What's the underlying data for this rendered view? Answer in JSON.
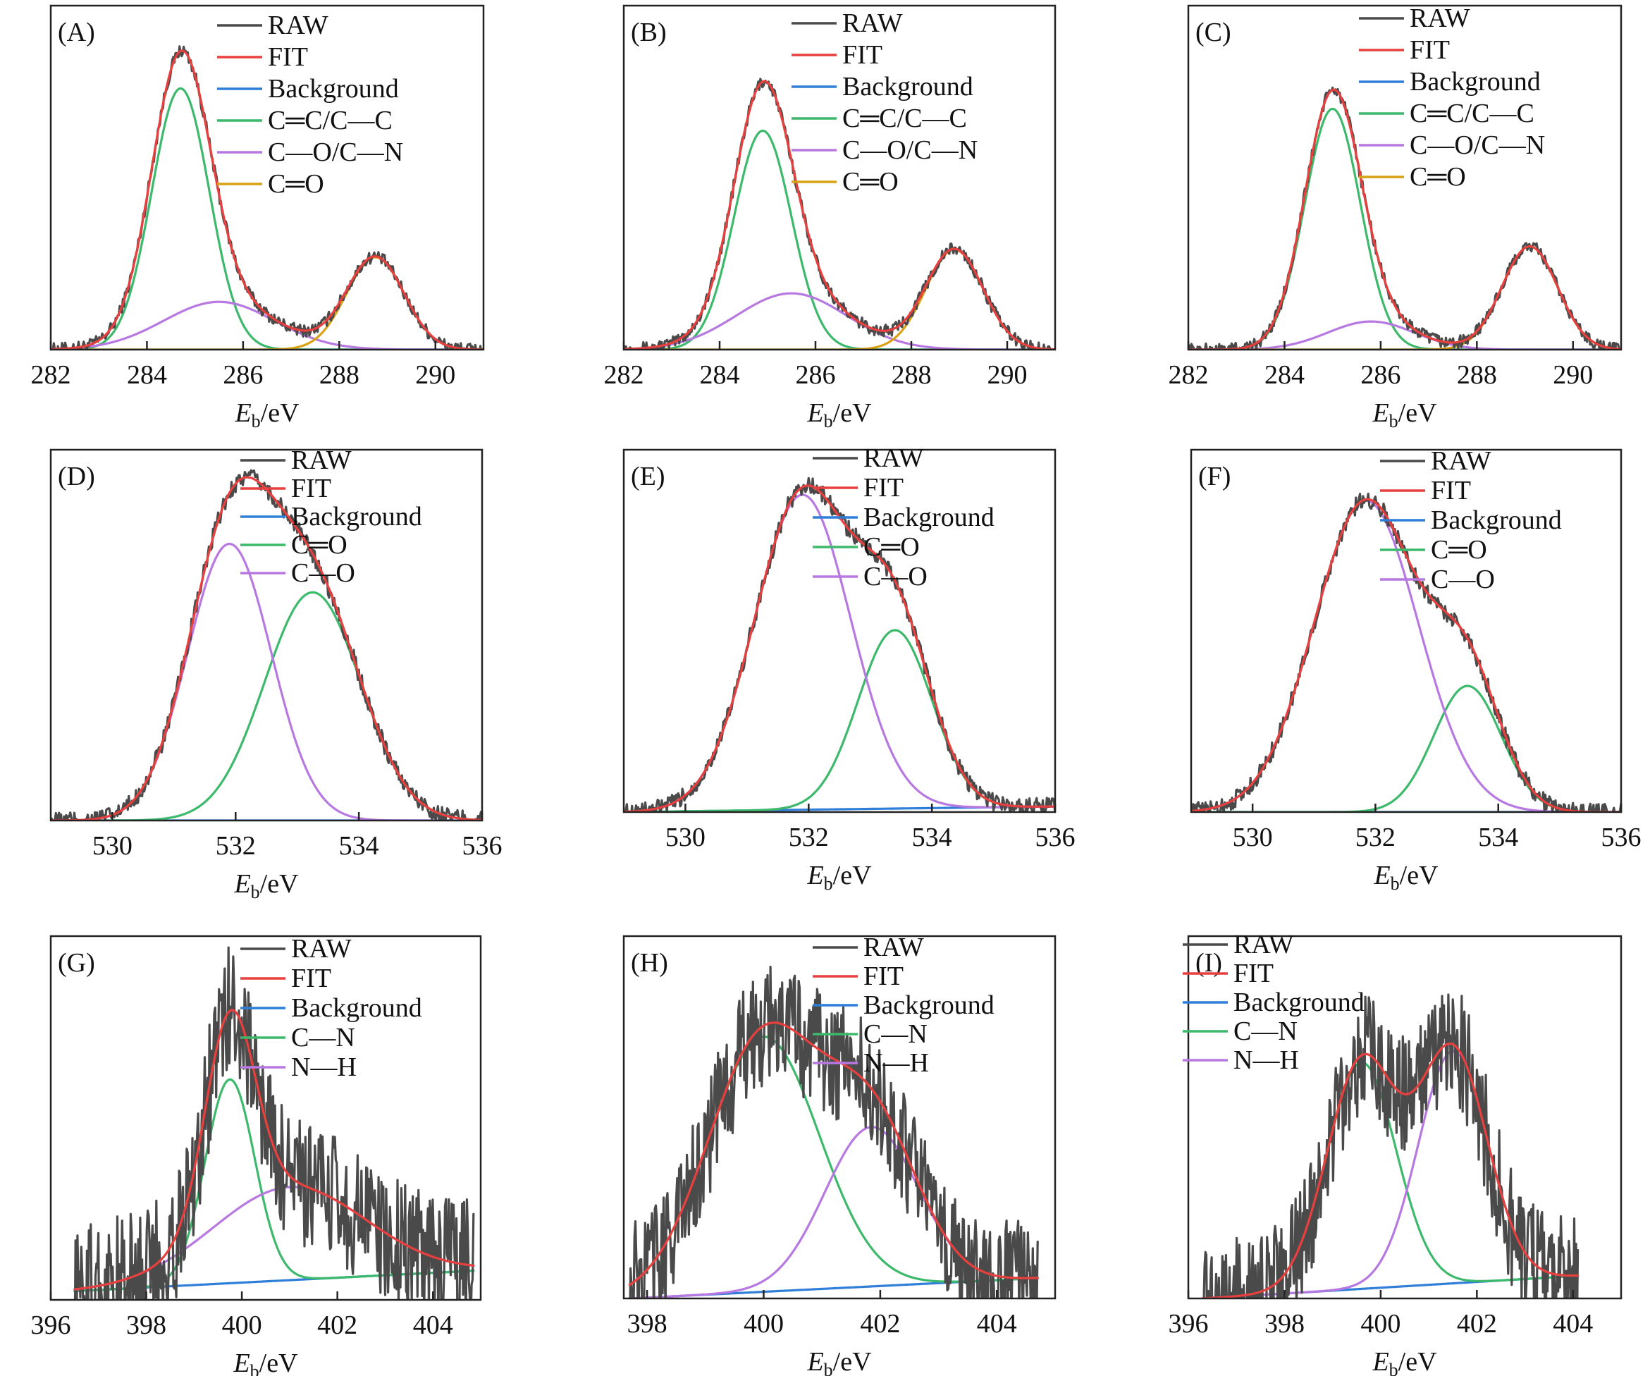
{
  "figure": {
    "title": ""
  },
  "chart_data": [
    {
      "panel": "(A)",
      "type": "line",
      "xlabel_main": "E",
      "xlabel_sub": "b",
      "xlabel_tail": "/eV",
      "xlim": [
        282,
        291
      ],
      "ylim": [
        0,
        1.08
      ],
      "xticks": [
        282,
        284,
        286,
        288,
        290
      ],
      "xtick_labels": [
        "282",
        "284",
        "286",
        "288",
        "290"
      ],
      "raw_noise": 0.006,
      "background": [
        0.0,
        0.0
      ],
      "components": [
        {
          "name": "C═C/C—C",
          "center": 284.7,
          "height": 0.82,
          "sigma": 0.6
        },
        {
          "name": "C—O/C—N",
          "center": 285.5,
          "height": 0.15,
          "sigma": 1.15
        },
        {
          "name": "C═O",
          "center": 288.75,
          "height": 0.29,
          "sigma": 0.6
        }
      ],
      "series": [
        {
          "name": "RAW",
          "color": "#4a4a4a"
        },
        {
          "name": "FIT",
          "color": "#e8403e"
        },
        {
          "name": "Background",
          "color": "#2f7ed8"
        },
        {
          "name": "C═C/C—C",
          "color": "#3cb96b"
        },
        {
          "name": "C—O/C—N",
          "color": "#b878e2"
        },
        {
          "name": "C═O",
          "color": "#d9a214"
        }
      ]
    },
    {
      "panel": "(B)",
      "type": "line",
      "xlabel_main": "E",
      "xlabel_sub": "b",
      "xlabel_tail": "/eV",
      "xlim": [
        282,
        291
      ],
      "ylim": [
        0,
        1.1
      ],
      "xticks": [
        282,
        284,
        286,
        288,
        290
      ],
      "xtick_labels": [
        "282",
        "284",
        "286",
        "288",
        "290"
      ],
      "raw_noise": 0.006,
      "background": [
        0.0,
        0.0
      ],
      "components": [
        {
          "name": "C═C/C—C",
          "center": 284.9,
          "height": 0.7,
          "sigma": 0.6
        },
        {
          "name": "C—O/C—N",
          "center": 285.5,
          "height": 0.18,
          "sigma": 1.15
        },
        {
          "name": "C═O",
          "center": 288.9,
          "height": 0.32,
          "sigma": 0.6
        }
      ],
      "series": [
        {
          "name": "RAW",
          "color": "#4a4a4a"
        },
        {
          "name": "FIT",
          "color": "#e8403e"
        },
        {
          "name": "Background",
          "color": "#2f7ed8"
        },
        {
          "name": "C═C/C—C",
          "color": "#3cb96b"
        },
        {
          "name": "C—O/C—N",
          "color": "#b878e2"
        },
        {
          "name": "C═O",
          "color": "#d9a214"
        }
      ]
    },
    {
      "panel": "(C)",
      "type": "line",
      "xlabel_main": "E",
      "xlabel_sub": "b",
      "xlabel_tail": "/eV",
      "xlim": [
        282,
        291
      ],
      "ylim": [
        0,
        1.1
      ],
      "xticks": [
        282,
        284,
        286,
        288,
        290
      ],
      "xtick_labels": [
        "282",
        "284",
        "286",
        "288",
        "290"
      ],
      "raw_noise": 0.006,
      "background": [
        0.0,
        0.0
      ],
      "components": [
        {
          "name": "C═C/C—C",
          "center": 285.0,
          "height": 0.77,
          "sigma": 0.58
        },
        {
          "name": "C—O/C—N",
          "center": 285.8,
          "height": 0.09,
          "sigma": 0.9
        },
        {
          "name": "C═O",
          "center": 289.1,
          "height": 0.33,
          "sigma": 0.58
        }
      ],
      "series": [
        {
          "name": "RAW",
          "color": "#4a4a4a"
        },
        {
          "name": "FIT",
          "color": "#e8403e"
        },
        {
          "name": "Background",
          "color": "#2f7ed8"
        },
        {
          "name": "C═C/C—C",
          "color": "#3cb96b"
        },
        {
          "name": "C—O/C—N",
          "color": "#b878e2"
        },
        {
          "name": "C═O",
          "color": "#d9a214"
        }
      ]
    },
    {
      "panel": "(D)",
      "type": "line",
      "xlabel_main": "E",
      "xlabel_sub": "b",
      "xlabel_tail": "/eV",
      "xlim": [
        529,
        536
      ],
      "ylim": [
        0,
        1.3
      ],
      "xticks": [
        530,
        532,
        534,
        536
      ],
      "xtick_labels": [
        "530",
        "532",
        "534",
        "536"
      ],
      "raw_noise": 0.008,
      "background": [
        0.0,
        0.0
      ],
      "components": [
        {
          "name": "C═O",
          "center": 533.25,
          "height": 0.8,
          "sigma": 0.78
        },
        {
          "name": "C—O",
          "center": 531.9,
          "height": 0.97,
          "sigma": 0.68
        }
      ],
      "series": [
        {
          "name": "RAW",
          "color": "#4a4a4a"
        },
        {
          "name": "FIT",
          "color": "#e8403e"
        },
        {
          "name": "Background",
          "color": "#2f7ed8"
        },
        {
          "name": "C═O",
          "color": "#3cb96b"
        },
        {
          "name": "C—O",
          "color": "#b878e2"
        }
      ]
    },
    {
      "panel": "(E)",
      "type": "line",
      "xlabel_main": "E",
      "xlabel_sub": "b",
      "xlabel_tail": "/eV",
      "xlim": [
        529,
        536
      ],
      "ylim": [
        0,
        1.3
      ],
      "xticks": [
        530,
        532,
        534,
        536
      ],
      "xtick_labels": [
        "530",
        "532",
        "534",
        "536"
      ],
      "raw_noise": 0.008,
      "background": [
        0.0,
        0.02
      ],
      "components": [
        {
          "name": "C═O",
          "center": 533.4,
          "height": 0.64,
          "sigma": 0.6
        },
        {
          "name": "C—O",
          "center": 531.9,
          "height": 1.13,
          "sigma": 0.78
        }
      ],
      "series": [
        {
          "name": "RAW",
          "color": "#4a4a4a"
        },
        {
          "name": "FIT",
          "color": "#e8403e"
        },
        {
          "name": "Background",
          "color": "#2f7ed8"
        },
        {
          "name": "C═O",
          "color": "#3cb96b"
        },
        {
          "name": "C—O",
          "color": "#b878e2"
        }
      ]
    },
    {
      "panel": "(F)",
      "type": "line",
      "xlabel_main": "E",
      "xlabel_sub": "b",
      "xlabel_tail": "/eV",
      "xlim": [
        529,
        536
      ],
      "ylim": [
        0,
        1.35
      ],
      "xticks": [
        530,
        532,
        534,
        536
      ],
      "xtick_labels": [
        "530",
        "532",
        "534",
        "536"
      ],
      "raw_noise": 0.008,
      "background": [
        0.0,
        0.0
      ],
      "components": [
        {
          "name": "C═O",
          "center": 533.5,
          "height": 0.47,
          "sigma": 0.55
        },
        {
          "name": "C—O",
          "center": 531.85,
          "height": 1.16,
          "sigma": 0.85
        }
      ],
      "series": [
        {
          "name": "RAW",
          "color": "#4a4a4a"
        },
        {
          "name": "FIT",
          "color": "#e8403e"
        },
        {
          "name": "Background",
          "color": "#2f7ed8"
        },
        {
          "name": "C═O",
          "color": "#3cb96b"
        },
        {
          "name": "C—O",
          "color": "#b878e2"
        }
      ]
    },
    {
      "panel": "(G)",
      "type": "line",
      "xlabel_main": "E",
      "xlabel_sub": "b",
      "xlabel_tail": "/eV",
      "xlim": [
        396,
        405
      ],
      "ylim": [
        0,
        1.25
      ],
      "xticks": [
        396,
        398,
        400,
        402,
        404
      ],
      "xtick_labels": [
        "396",
        "398",
        "400",
        "402",
        "404"
      ],
      "raw_noise": 0.06,
      "x_start": 396.5,
      "x_end": 404.85,
      "background": [
        0.03,
        0.1
      ],
      "components": [
        {
          "name": "C—N",
          "center": 399.75,
          "height": 0.7,
          "sigma": 0.52
        },
        {
          "name": "N—H",
          "center": 401.0,
          "height": 0.32,
          "sigma": 1.6
        }
      ],
      "series": [
        {
          "name": "RAW",
          "color": "#4a4a4a"
        },
        {
          "name": "FIT",
          "color": "#e8403e"
        },
        {
          "name": "Background",
          "color": "#2f7ed8"
        },
        {
          "name": "C—N",
          "color": "#3cb96b"
        },
        {
          "name": "N—H",
          "color": "#b878e2"
        }
      ]
    },
    {
      "panel": "(H)",
      "type": "line",
      "xlabel_main": "E",
      "xlabel_sub": "b",
      "xlabel_tail": "/eV",
      "xlim": [
        397.6,
        405.0
      ],
      "ylim": [
        0,
        1.25
      ],
      "xticks": [
        398,
        400,
        402,
        404
      ],
      "xtick_labels": [
        "398",
        "400",
        "402",
        "404"
      ],
      "raw_noise": 0.055,
      "x_start": 397.7,
      "x_end": 404.7,
      "background": [
        0.0,
        0.07
      ],
      "components": [
        {
          "name": "C—N",
          "center": 400.0,
          "height": 0.88,
          "sigma": 0.95
        },
        {
          "name": "N—H",
          "center": 401.85,
          "height": 0.55,
          "sigma": 0.8
        }
      ],
      "series": [
        {
          "name": "RAW",
          "color": "#4a4a4a"
        },
        {
          "name": "FIT",
          "color": "#e8403e"
        },
        {
          "name": "Background",
          "color": "#2f7ed8"
        },
        {
          "name": "C—N",
          "color": "#3cb96b"
        },
        {
          "name": "N—H",
          "color": "#b878e2"
        }
      ]
    },
    {
      "panel": "(I)",
      "type": "line",
      "xlabel_main": "E",
      "xlabel_sub": "b",
      "xlabel_tail": "/eV",
      "xlim": [
        396,
        405
      ],
      "ylim": [
        0,
        1.28
      ],
      "xticks": [
        396,
        398,
        400,
        402,
        404
      ],
      "xtick_labels": [
        "396",
        "398",
        "400",
        "402",
        "404"
      ],
      "raw_noise": 0.055,
      "x_start": 396.3,
      "x_end": 404.1,
      "background": [
        0.0,
        0.08
      ],
      "components": [
        {
          "name": "C—N",
          "center": 399.6,
          "height": 0.8,
          "sigma": 0.72
        },
        {
          "name": "N—H",
          "center": 401.5,
          "height": 0.82,
          "sigma": 0.72
        }
      ],
      "series": [
        {
          "name": "RAW",
          "color": "#4a4a4a"
        },
        {
          "name": "FIT",
          "color": "#e8403e"
        },
        {
          "name": "Background",
          "color": "#2f7ed8"
        },
        {
          "name": "C—N",
          "color": "#3cb96b"
        },
        {
          "name": "N—H",
          "color": "#b878e2"
        }
      ]
    }
  ]
}
